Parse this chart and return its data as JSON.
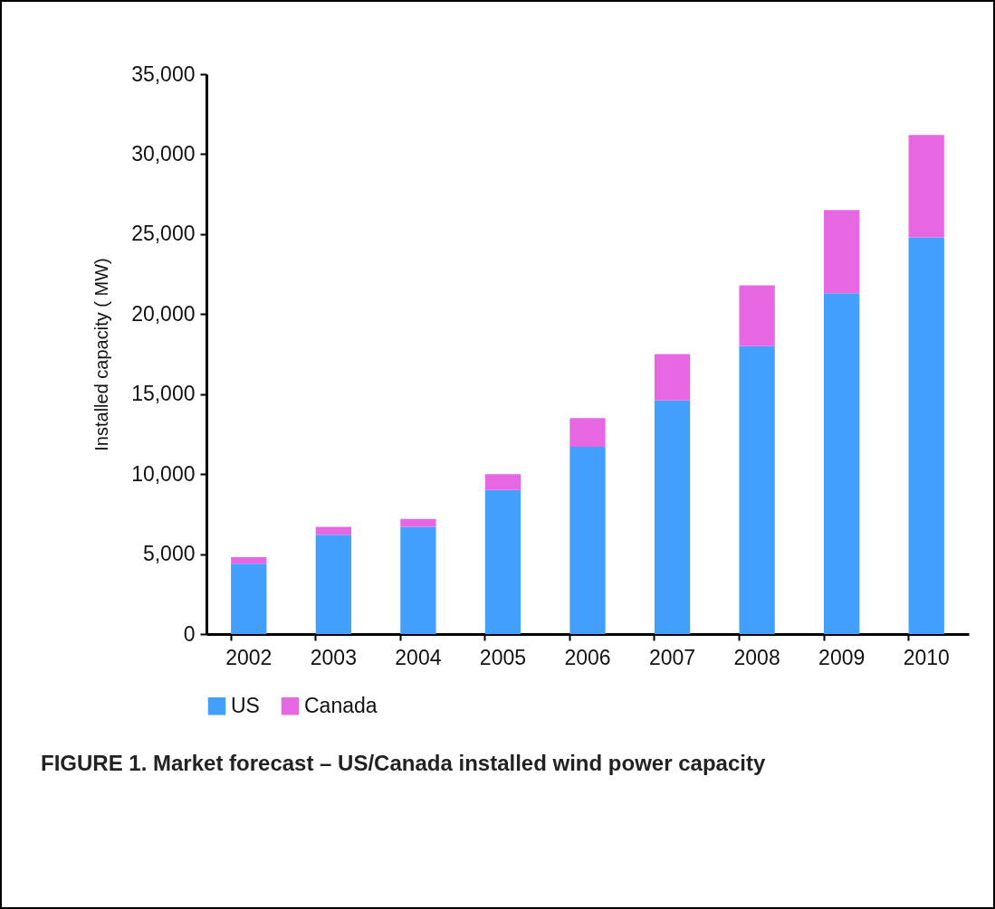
{
  "chart_data": {
    "type": "bar",
    "title": "FIGURE 1. Market forecast – US/Canada installed wind power capacity",
    "ylabel": "Installed capacity ( MW)",
    "categories": [
      "2002",
      "2003",
      "2004",
      "2005",
      "2006",
      "2007",
      "2008",
      "2009",
      "2010"
    ],
    "series": [
      {
        "name": "US",
        "color": "#429ffc",
        "values": [
          4400,
          6200,
          6700,
          9000,
          11700,
          14600,
          18000,
          21300,
          24800
        ]
      },
      {
        "name": "Canada",
        "color": "#e767e3",
        "values": [
          400,
          500,
          500,
          1000,
          1800,
          2900,
          3800,
          5200,
          6400
        ]
      }
    ],
    "stacked": true,
    "ylim": [
      0,
      35000
    ],
    "yticks": [
      0,
      {
        "value": 5000,
        "label": "5,000"
      },
      {
        "value": 10000,
        "label": "10,000"
      },
      {
        "value": 15000,
        "label": "15,000"
      },
      {
        "value": 20000,
        "label": "20,000"
      },
      {
        "value": 25000,
        "label": "25,000"
      },
      {
        "value": 30000,
        "label": "30,000"
      },
      {
        "value": 35000,
        "label": "35,000"
      }
    ],
    "grid": false,
    "legend": "bottom"
  }
}
